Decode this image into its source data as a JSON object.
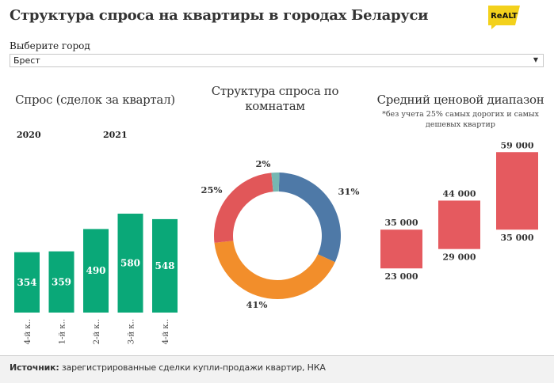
{
  "header": {
    "title": "Структура спроса на квартиры в городах Беларуси",
    "logo_text": "ReALT"
  },
  "filter": {
    "label": "Выберите город",
    "value": "Брест"
  },
  "colors": {
    "demand_bar": "#0aa878",
    "price_box": "#e55a5f",
    "donut": [
      "#4e79a7",
      "#f28e2b",
      "#e15759",
      "#76b7b2"
    ],
    "text": "#222222"
  },
  "charts": [
    {
      "title": "Спрос (сделок за квартал)",
      "year_labels": [
        "2020",
        "2021"
      ]
    },
    {
      "title_lines": [
        "Структура спроса по",
        "комнатам"
      ]
    },
    {
      "title": "Средний ценовой диапазон",
      "note_lines": [
        "*без учета 25% самых дорогих и самых",
        "дешевых квартир"
      ]
    }
  ],
  "chart_data": [
    {
      "type": "bar",
      "categories": [
        "4-й к..",
        "1-й к..",
        "2-й к..",
        "3-й к..",
        "4-й к.."
      ],
      "values": [
        354,
        359,
        490,
        580,
        548
      ],
      "value_labels": [
        "354",
        "359",
        "490",
        "580",
        "548"
      ],
      "ylim": [
        0,
        600
      ]
    },
    {
      "type": "pie",
      "donut": true,
      "values": [
        31,
        41,
        25,
        2
      ],
      "value_labels": [
        "31%",
        "41%",
        "25%",
        "2%"
      ]
    },
    {
      "type": "bar",
      "subtype": "floating-range",
      "ranges": [
        [
          23000,
          35000
        ],
        [
          29000,
          44000
        ],
        [
          35000,
          59000
        ]
      ],
      "high_labels": [
        "35 000",
        "44 000",
        "59 000"
      ],
      "low_labels": [
        "23 000",
        "29 000",
        "35 000"
      ],
      "ylim": [
        13000,
        62000
      ]
    }
  ],
  "footer": {
    "source_label": "Источник:",
    "source_text": " зарегистрированные сделки купли-продажи квартир, НКА"
  }
}
